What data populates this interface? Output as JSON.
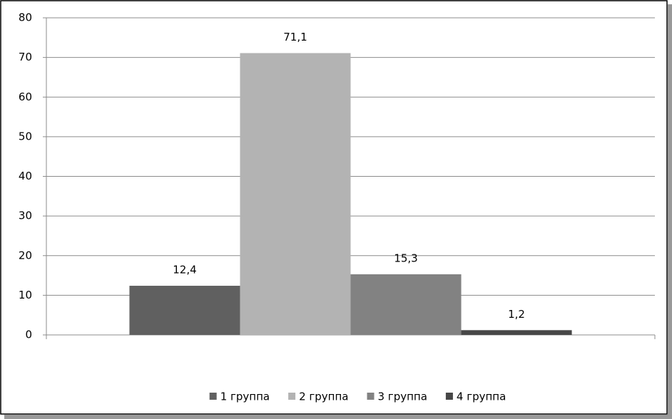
{
  "chart_data": {
    "type": "bar",
    "categories": [
      null
    ],
    "series": [
      {
        "name": "1 группа",
        "color": "#606060",
        "values": [
          12.4
        ],
        "value_labels": [
          "12,4"
        ]
      },
      {
        "name": "2 группа",
        "color": "#b3b3b3",
        "values": [
          71.1
        ],
        "value_labels": [
          "71,1"
        ]
      },
      {
        "name": "3 группа",
        "color": "#828282",
        "values": [
          15.3
        ],
        "value_labels": [
          "15,3"
        ]
      },
      {
        "name": "4 группа",
        "color": "#474747",
        "values": [
          1.2
        ],
        "value_labels": [
          "1,2"
        ]
      }
    ],
    "ylim": [
      0,
      80
    ],
    "yticks": [
      0,
      10,
      20,
      30,
      40,
      50,
      60,
      70,
      80
    ],
    "grid": true,
    "legend": "bottom"
  }
}
